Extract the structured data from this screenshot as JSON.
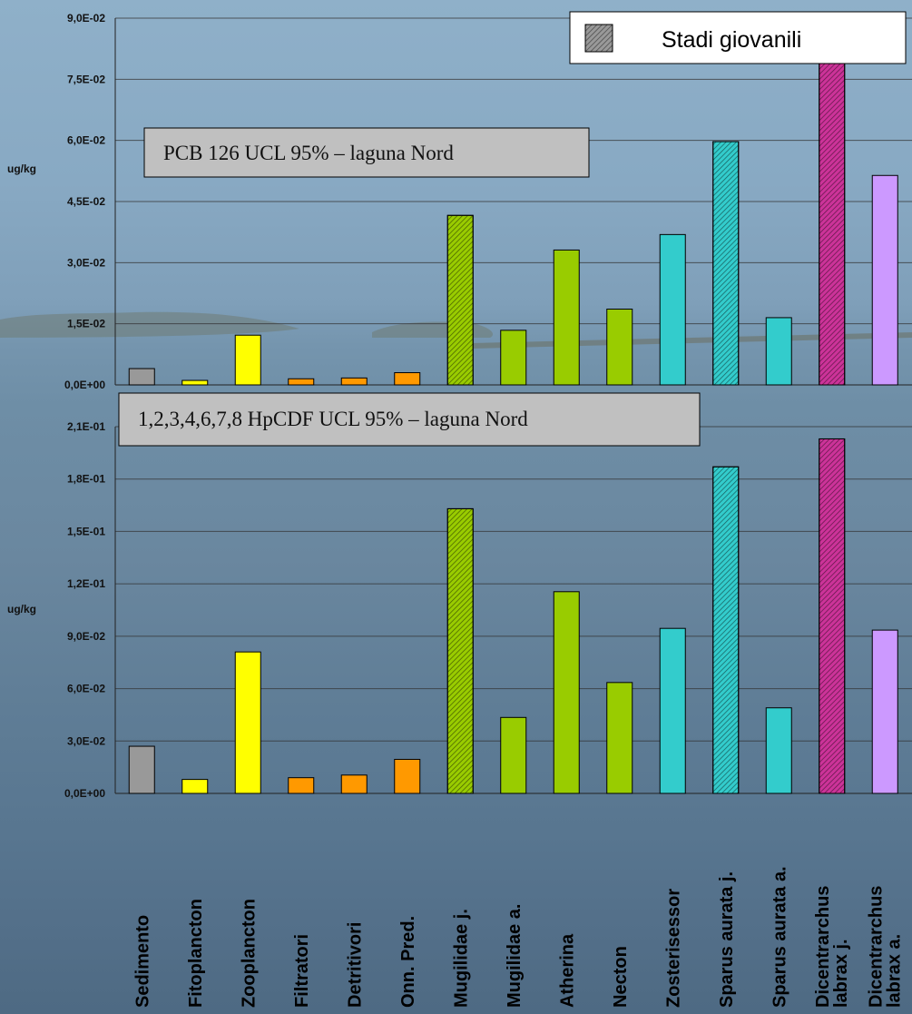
{
  "legend": {
    "label": "Stadi giovanili"
  },
  "categories": [
    "Sedimento",
    "Fitoplancton",
    "Zooplancton",
    "Filtratori",
    "Detritivori",
    "Onn. Pred.",
    "Mugilidae j.",
    "Mugilidae a.",
    "Atherina",
    "Necton",
    "Zosterisessor",
    "Sparus aurata j.",
    "Sparus aurata a.",
    "Dicentrarchus labrax j.",
    "Dicentrarchus labrax a."
  ],
  "category_lines": [
    [
      "Sedimento"
    ],
    [
      "Fitoplancton"
    ],
    [
      "Zooplancton"
    ],
    [
      "Filtratori"
    ],
    [
      "Detritivori"
    ],
    [
      "Onn. Pred."
    ],
    [
      "Mugilidae j."
    ],
    [
      "Mugilidae a."
    ],
    [
      "Atherina"
    ],
    [
      "Necton"
    ],
    [
      "Zosterisessor"
    ],
    [
      "Sparus aurata j."
    ],
    [
      "Sparus aurata a."
    ],
    [
      "Dicentrarchus",
      "labrax  j."
    ],
    [
      "Dicentrarchus",
      "labrax  a."
    ]
  ],
  "colors": [
    "#999999",
    "#ffff00",
    "#ffff00",
    "#ff9900",
    "#ff9900",
    "#ff9900",
    "#99cc00",
    "#99cc00",
    "#99cc00",
    "#99cc00",
    "#33cccc",
    "#33cccc",
    "#33cccc",
    "#cc3399",
    "#cc99ff"
  ],
  "hatched": [
    false,
    false,
    false,
    false,
    false,
    false,
    true,
    false,
    false,
    false,
    false,
    true,
    false,
    true,
    false
  ],
  "chart_data": [
    {
      "type": "bar",
      "title": "PCB 126 UCL 95% – laguna Nord",
      "ylabel": "ug/kg",
      "ylim": [
        0,
        0.09
      ],
      "yticks": [
        "0,0E+00",
        "1,5E-02",
        "3,0E-02",
        "4,5E-02",
        "6,0E-02",
        "7,5E-02",
        "9,0E-02"
      ],
      "categories": [
        "Sedimento",
        "Fitoplancton",
        "Zooplancton",
        "Filtratori",
        "Detritivori",
        "Onn. Pred.",
        "Mugilidae j.",
        "Mugilidae a.",
        "Atherina",
        "Necton",
        "Zosterisessor",
        "Sparus aurata j.",
        "Sparus aurata a.",
        "Dicentrarchus labrax j.",
        "Dicentrarchus labrax a."
      ],
      "values": [
        0.004,
        0.0011,
        0.0122,
        0.0015,
        0.0017,
        0.003,
        0.0416,
        0.0134,
        0.0331,
        0.0186,
        0.0369,
        0.0597,
        0.0165,
        0.079,
        0.0514
      ],
      "legend": [
        "Stadi giovanili"
      ],
      "legend_position": "top-right",
      "grid": true
    },
    {
      "type": "bar",
      "title": "1,2,3,4,6,7,8 HpCDF UCL 95% – laguna Nord",
      "ylabel": "ug/kg",
      "ylim": [
        0,
        0.21
      ],
      "yticks": [
        "0,0E+00",
        "3,0E-02",
        "6,0E-02",
        "9,0E-02",
        "1,2E-01",
        "1,5E-01",
        "1,8E-01",
        "2,1E-01"
      ],
      "categories": [
        "Sedimento",
        "Fitoplancton",
        "Zooplancton",
        "Filtratori",
        "Detritivori",
        "Onn. Pred.",
        "Mugilidae j.",
        "Mugilidae a.",
        "Atherina",
        "Necton",
        "Zosterisessor",
        "Sparus aurata j.",
        "Sparus aurata a.",
        "Dicentrarchus labrax j.",
        "Dicentrarchus labrax a."
      ],
      "values": [
        0.027,
        0.008,
        0.081,
        0.009,
        0.0105,
        0.0195,
        0.163,
        0.0435,
        0.1155,
        0.0635,
        0.0945,
        0.187,
        0.049,
        0.203,
        0.0935
      ],
      "grid": true
    }
  ]
}
